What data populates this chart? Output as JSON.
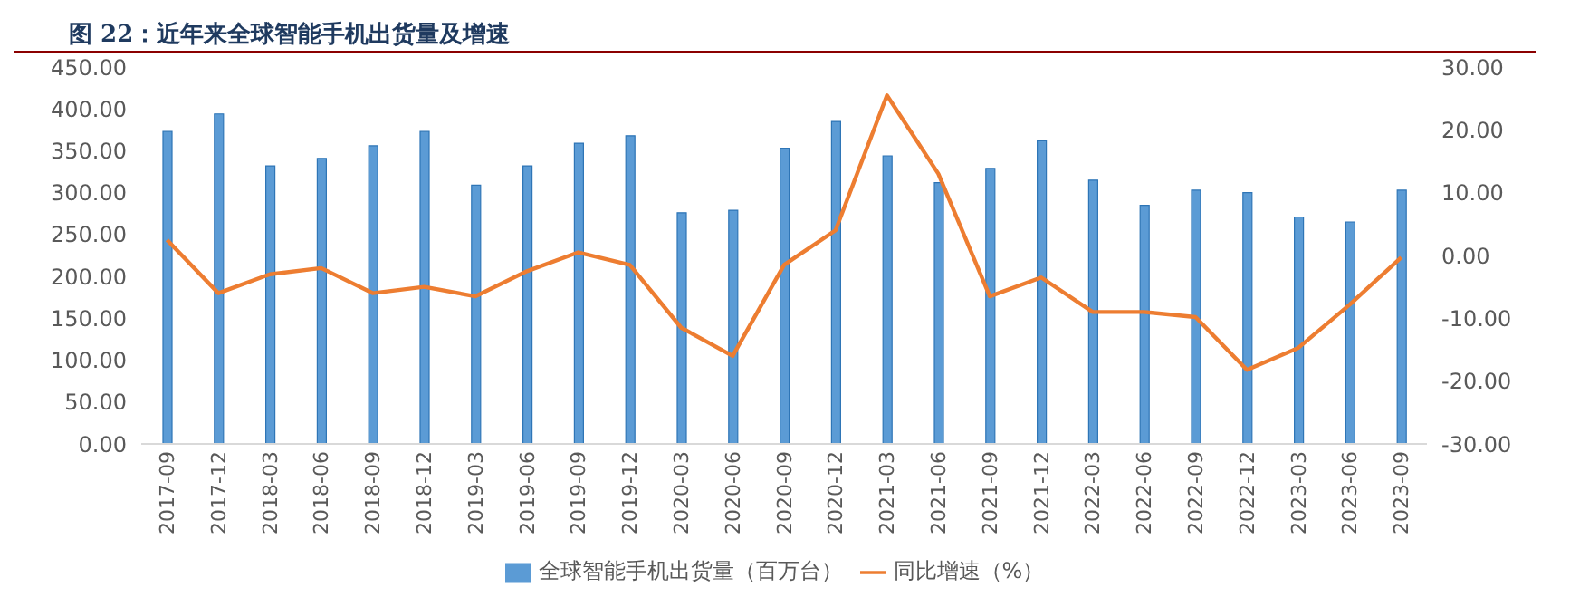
{
  "chart_data": {
    "type": "bar",
    "title": "图 22：近年来全球智能手机出货量及增速",
    "categories": [
      "2017-09",
      "2017-12",
      "2018-03",
      "2018-06",
      "2018-09",
      "2018-12",
      "2019-03",
      "2019-06",
      "2019-09",
      "2019-12",
      "2020-03",
      "2020-06",
      "2020-09",
      "2020-12",
      "2021-03",
      "2021-06",
      "2021-09",
      "2021-12",
      "2022-03",
      "2022-06",
      "2022-09",
      "2022-12",
      "2023-03",
      "2023-06",
      "2023-09"
    ],
    "series": [
      {
        "name": "全球智能手机出货量（百万台）",
        "color": "#5b9bd5",
        "values": [
          373,
          394,
          332,
          341,
          356,
          373,
          309,
          332,
          359,
          368,
          276,
          279,
          353,
          385,
          344,
          312,
          329,
          362,
          315,
          285,
          303,
          300,
          271,
          265,
          303
        ]
      },
      {
        "name": "同比增速（%）",
        "type": "line",
        "axis": "y2",
        "color": "#ed7d31",
        "values": [
          2.5,
          -6,
          -3,
          -2,
          -6,
          -5,
          -6.5,
          -2.5,
          0.5,
          -1.5,
          -11.5,
          -16,
          -1.5,
          4,
          25.5,
          13,
          -6.5,
          -3.5,
          -9,
          -9,
          -9.8,
          -18.2,
          -14.7,
          -7.8,
          -0.3
        ]
      }
    ],
    "ylim": [
      0,
      450
    ],
    "yticks": [
      {
        "value": 0,
        "label": "0.00"
      },
      {
        "value": 50,
        "label": "50.00"
      },
      {
        "value": 100,
        "label": "100.00"
      },
      {
        "value": 150,
        "label": "150.00"
      },
      {
        "value": 200,
        "label": "200.00"
      },
      {
        "value": 250,
        "label": "250.00"
      },
      {
        "value": 300,
        "label": "300.00"
      },
      {
        "value": 350,
        "label": "350.00"
      },
      {
        "value": 400,
        "label": "400.00"
      },
      {
        "value": 450,
        "label": "450.00"
      }
    ],
    "y2lim": [
      -30,
      30
    ],
    "y2ticks": [
      {
        "value": -30,
        "label": "-30.00"
      },
      {
        "value": -20,
        "label": "-20.00"
      },
      {
        "value": -10,
        "label": "-10.00"
      },
      {
        "value": 0,
        "label": "0.00"
      },
      {
        "value": 10,
        "label": "10.00"
      },
      {
        "value": 20,
        "label": "20.00"
      },
      {
        "value": 30,
        "label": "30.00"
      }
    ],
    "grid": false,
    "legend": "bottom",
    "marker": "none"
  }
}
